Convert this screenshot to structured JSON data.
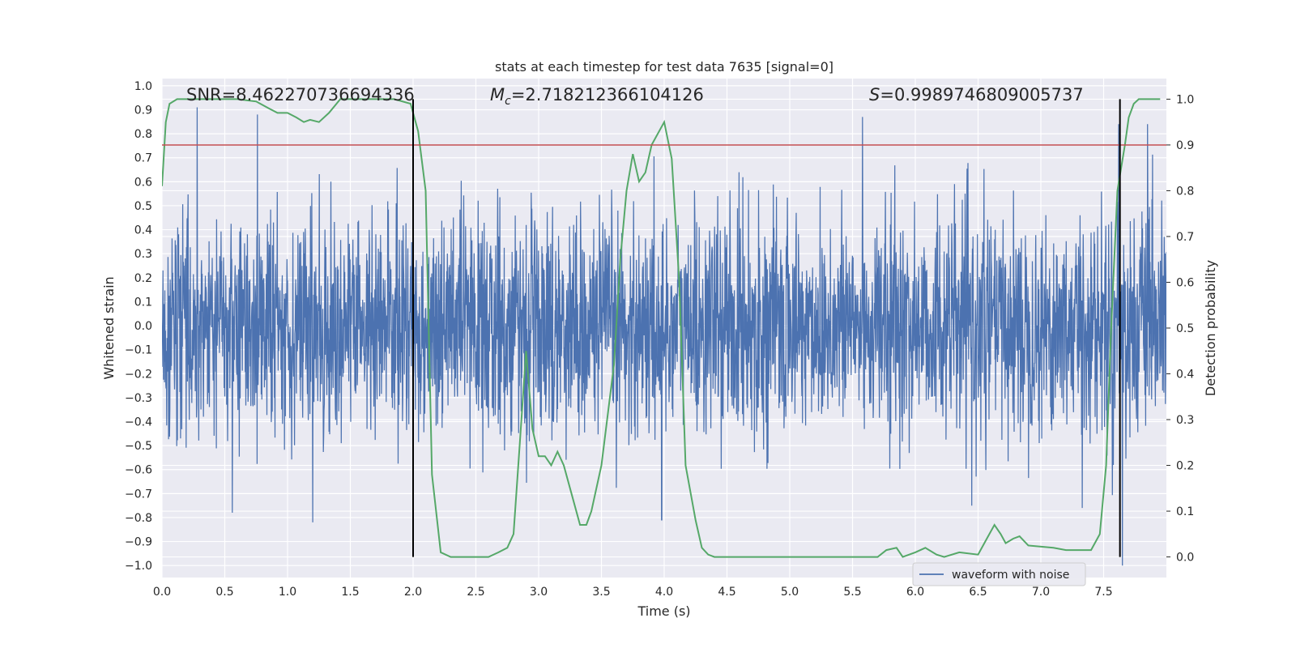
{
  "chart_data": {
    "type": "line",
    "title": "stats at each timestep for test data 7635 [signal=0]",
    "xlabel": "Time (s)",
    "ylabel": "Whitened strain",
    "ylabel_right": "Detection probability",
    "xlim": [
      0,
      8
    ],
    "ylim": [
      -1.05,
      1.03
    ],
    "ylim_right": [
      -0.045,
      1.045
    ],
    "xticks": [
      "0.0",
      "0.5",
      "1.0",
      "1.5",
      "2.0",
      "2.5",
      "3.0",
      "3.5",
      "4.0",
      "4.5",
      "5.0",
      "5.5",
      "6.0",
      "6.5",
      "7.0",
      "7.5"
    ],
    "yticks": [
      "1.0",
      "0.9",
      "0.8",
      "0.7",
      "0.6",
      "0.5",
      "0.4",
      "0.3",
      "0.2",
      "0.1",
      "0.0",
      "-0.1",
      "-0.2",
      "-0.3",
      "-0.4",
      "-0.5",
      "-0.6",
      "-0.7",
      "-0.8",
      "-0.9",
      "-1.0"
    ],
    "yticks_right": [
      "1.0",
      "0.9",
      "0.8",
      "0.7",
      "0.6",
      "0.5",
      "0.4",
      "0.3",
      "0.2",
      "0.1",
      "0.0"
    ],
    "grid": true,
    "legend_position": "lower-right",
    "annotations": {
      "snr": "SNR=8.462270736694336",
      "mc_symbol": "M",
      "mc_sub": "c",
      "mc_value": "=2.718212366104126",
      "s_symbol": "S",
      "s_value": "=0.9989746809005737"
    },
    "threshold_probability": 0.9,
    "vertical_markers_time": [
      2.0,
      7.63
    ],
    "series": [
      {
        "name": "waveform with noise",
        "axis": "left",
        "color": "#4c72b0",
        "envelope_typical": 0.45,
        "notable_peaks": [
          [
            0.28,
            0.91
          ],
          [
            0.76,
            0.88
          ],
          [
            1.2,
            -0.82
          ],
          [
            0.56,
            -0.78
          ],
          [
            3.98,
            -0.81
          ],
          [
            5.58,
            0.87
          ],
          [
            6.45,
            -0.75
          ],
          [
            7.33,
            -0.76
          ],
          [
            7.62,
            0.84
          ],
          [
            7.65,
            -1.0
          ],
          [
            7.85,
            0.84
          ]
        ]
      },
      {
        "axis": "right",
        "color": "#55a868",
        "x": [
          0.0,
          0.03,
          0.06,
          0.12,
          0.2,
          0.4,
          0.6,
          0.75,
          0.85,
          0.92,
          1.0,
          1.07,
          1.13,
          1.18,
          1.25,
          1.33,
          1.42,
          1.55,
          1.7,
          1.85,
          1.98,
          2.04,
          2.1,
          2.15,
          2.22,
          2.3,
          2.45,
          2.6,
          2.68,
          2.75,
          2.8,
          2.85,
          2.9,
          2.95,
          3.0,
          3.05,
          3.1,
          3.15,
          3.2,
          3.28,
          3.33,
          3.38,
          3.42,
          3.5,
          3.6,
          3.65,
          3.7,
          3.75,
          3.8,
          3.85,
          3.9,
          4.0,
          4.06,
          4.12,
          4.17,
          4.25,
          4.3,
          4.35,
          4.4,
          4.55,
          4.8,
          5.0,
          5.2,
          5.5,
          5.7,
          5.77,
          5.85,
          5.9,
          6.0,
          6.08,
          6.17,
          6.23,
          6.35,
          6.5,
          6.57,
          6.63,
          6.68,
          6.72,
          6.78,
          6.83,
          6.9,
          7.1,
          7.2,
          7.28,
          7.4,
          7.47,
          7.52,
          7.56,
          7.61,
          7.67,
          7.7,
          7.74,
          7.78,
          7.85,
          7.95
        ],
        "y": [
          0.81,
          0.95,
          0.99,
          1.0,
          1.0,
          1.0,
          1.0,
          0.995,
          0.98,
          0.97,
          0.97,
          0.96,
          0.95,
          0.955,
          0.95,
          0.97,
          1.0,
          1.0,
          1.0,
          1.0,
          0.99,
          0.93,
          0.8,
          0.18,
          0.01,
          0.0,
          0.0,
          0.0,
          0.01,
          0.02,
          0.05,
          0.25,
          0.45,
          0.28,
          0.22,
          0.22,
          0.2,
          0.23,
          0.2,
          0.12,
          0.07,
          0.07,
          0.1,
          0.2,
          0.42,
          0.65,
          0.8,
          0.88,
          0.82,
          0.84,
          0.9,
          0.95,
          0.87,
          0.6,
          0.2,
          0.08,
          0.02,
          0.005,
          0.0,
          0.0,
          0.0,
          0.0,
          0.0,
          0.0,
          0.0,
          0.015,
          0.02,
          0.0,
          0.01,
          0.02,
          0.005,
          0.0,
          0.01,
          0.005,
          0.04,
          0.07,
          0.05,
          0.03,
          0.04,
          0.045,
          0.025,
          0.02,
          0.015,
          0.015,
          0.015,
          0.05,
          0.2,
          0.5,
          0.8,
          0.9,
          0.96,
          0.99,
          1.0,
          1.0,
          1.0
        ]
      }
    ]
  }
}
